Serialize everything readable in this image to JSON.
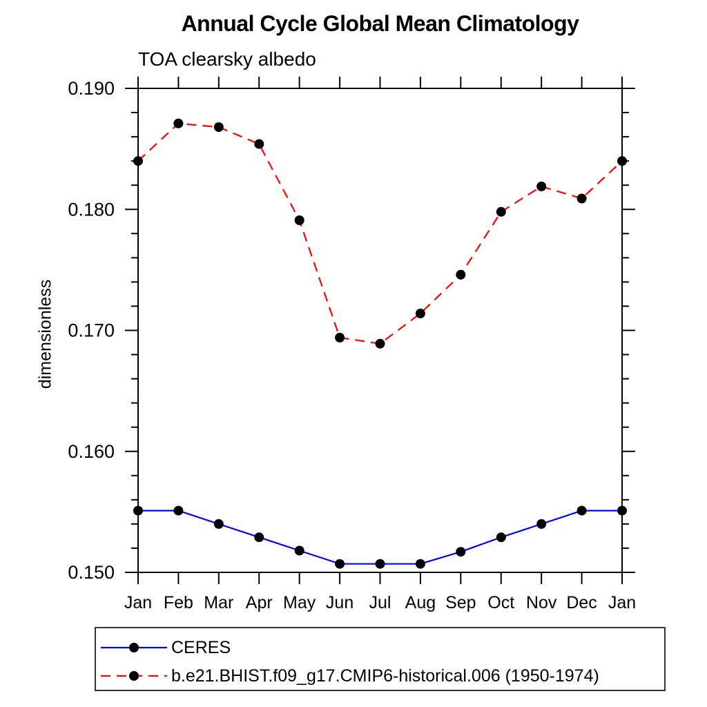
{
  "title": "Annual Cycle Global Mean Climatology",
  "subtitle": "TOA clearsky albedo",
  "y_axis_label": "dimensionless",
  "chart_data": {
    "type": "line",
    "title": "Annual Cycle Global Mean Climatology",
    "subtitle": "TOA clearsky albedo",
    "xlabel": "",
    "ylabel": "dimensionless",
    "x_tick_labels": [
      "Jan",
      "Feb",
      "Mar",
      "Apr",
      "May",
      "Jun",
      "Jul",
      "Aug",
      "Sep",
      "Oct",
      "Nov",
      "Dec",
      "Jan"
    ],
    "ylim": [
      0.15,
      0.19
    ],
    "y_major_tick_step": 0.01,
    "y_minor_tick_step": 0.002,
    "y_tick_decimals": 3,
    "grid": false,
    "legend_position": "bottom-left-box",
    "axis_color": "#000000",
    "series": [
      {
        "name": "CERES",
        "color": "#0000ff",
        "line_style": "solid",
        "marker": "filled-circle",
        "marker_color": "#000000",
        "values": [
          0.1551,
          0.1551,
          0.154,
          0.1529,
          0.1518,
          0.1507,
          0.1507,
          0.1507,
          0.1517,
          0.1529,
          0.154,
          0.1551,
          0.1551
        ]
      },
      {
        "name": "b.e21.BHIST.f09_g17.CMIP6-historical.006 (1950-1974)",
        "color": "#ff0000",
        "line_style": "dashed",
        "marker": "filled-circle",
        "marker_color": "#000000",
        "values": [
          0.184,
          0.1871,
          0.1868,
          0.1854,
          0.1791,
          0.1694,
          0.1689,
          0.1714,
          0.1746,
          0.1798,
          0.1819,
          0.1809,
          0.184
        ]
      }
    ]
  }
}
